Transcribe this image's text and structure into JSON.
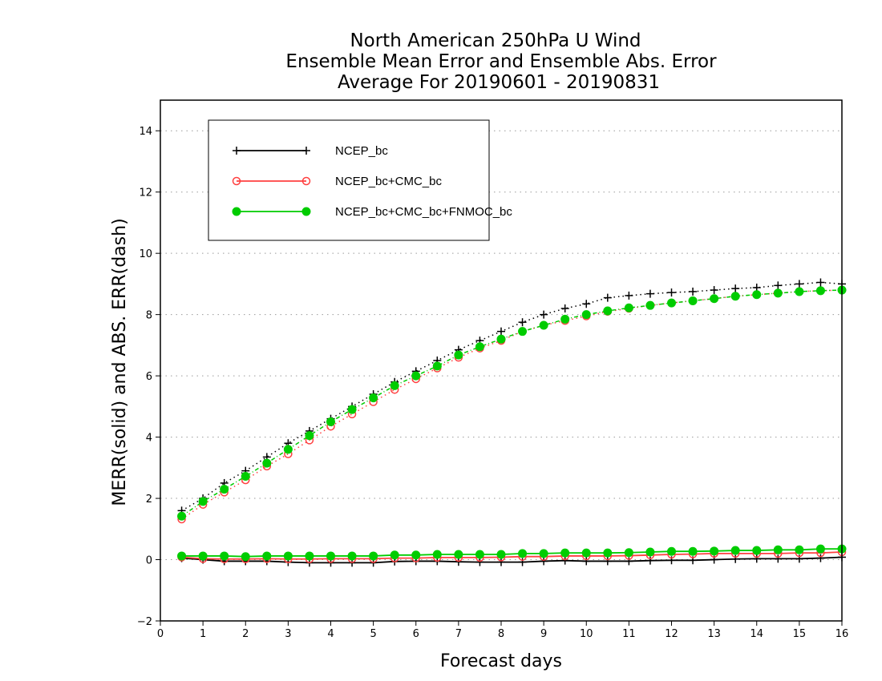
{
  "chart_data": {
    "type": "line",
    "title": [
      "North American 250hPa U Wind",
      "Ensemble Mean Error and Ensemble Abs. Error",
      "Average For 20190601 - 20190831"
    ],
    "xlabel": "Forecast days",
    "ylabel": "MERR(solid) and ABS. ERR(dash)",
    "xlim": [
      0,
      16
    ],
    "ylim": [
      -2,
      15
    ],
    "xticks": [
      "0",
      "1",
      "2",
      "3",
      "4",
      "5",
      "6",
      "7",
      "8",
      "9",
      "10",
      "11",
      "12",
      "13",
      "14",
      "15",
      "16"
    ],
    "yticks": [
      "−2",
      "0",
      "2",
      "4",
      "6",
      "8",
      "10",
      "12",
      "14"
    ],
    "grid": true,
    "legend_position": "top-left",
    "x": [
      0.5,
      1,
      1.5,
      2,
      2.5,
      3,
      3.5,
      4,
      4.5,
      5,
      5.5,
      6,
      6.5,
      7,
      7.5,
      8,
      8.5,
      9,
      9.5,
      10,
      10.5,
      11,
      11.5,
      12,
      12.5,
      13,
      13.5,
      14,
      14.5,
      15,
      15.5,
      16
    ],
    "series": [
      {
        "name": "NCEP_bc",
        "color": "#000000",
        "marker": "plus",
        "abs_error": [
          1.6,
          2.0,
          2.5,
          2.9,
          3.35,
          3.8,
          4.2,
          4.6,
          5.0,
          5.4,
          5.8,
          6.15,
          6.5,
          6.85,
          7.15,
          7.45,
          7.75,
          8.0,
          8.2,
          8.35,
          8.55,
          8.62,
          8.68,
          8.72,
          8.75,
          8.8,
          8.85,
          8.88,
          8.95,
          9.0,
          9.05,
          9.0
        ],
        "mean_error": [
          0.05,
          0.0,
          -0.05,
          -0.05,
          -0.05,
          -0.08,
          -0.1,
          -0.1,
          -0.1,
          -0.1,
          -0.06,
          -0.05,
          -0.05,
          -0.07,
          -0.08,
          -0.08,
          -0.08,
          -0.05,
          -0.03,
          -0.05,
          -0.05,
          -0.05,
          -0.03,
          -0.02,
          -0.02,
          0.0,
          0.02,
          0.03,
          0.03,
          0.03,
          0.05,
          0.08
        ]
      },
      {
        "name": "NCEP_bc+CMC_bc",
        "color": "#ff4040",
        "marker": "open-circle",
        "abs_error": [
          1.32,
          1.8,
          2.2,
          2.6,
          3.05,
          3.45,
          3.9,
          4.35,
          4.75,
          5.15,
          5.55,
          5.9,
          6.25,
          6.6,
          6.9,
          7.15,
          7.45,
          7.65,
          7.8,
          7.95,
          8.1,
          8.2,
          8.3,
          8.38,
          8.45,
          8.52,
          8.6,
          8.65,
          8.7,
          8.75,
          8.78,
          8.8
        ],
        "mean_error": [
          0.08,
          0.03,
          0.02,
          0.02,
          0.03,
          0.02,
          0.02,
          0.03,
          0.03,
          0.03,
          0.05,
          0.05,
          0.07,
          0.07,
          0.07,
          0.08,
          0.1,
          0.1,
          0.12,
          0.12,
          0.12,
          0.13,
          0.15,
          0.17,
          0.18,
          0.2,
          0.2,
          0.2,
          0.2,
          0.22,
          0.22,
          0.25
        ]
      },
      {
        "name": "NCEP_bc+CMC_bc+FNMOC_bc",
        "color": "#00cc00",
        "marker": "filled-circle",
        "abs_error": [
          1.42,
          1.9,
          2.3,
          2.72,
          3.15,
          3.6,
          4.05,
          4.5,
          4.9,
          5.28,
          5.68,
          6.0,
          6.32,
          6.68,
          6.95,
          7.2,
          7.45,
          7.65,
          7.85,
          8.0,
          8.12,
          8.22,
          8.3,
          8.38,
          8.45,
          8.52,
          8.6,
          8.65,
          8.7,
          8.75,
          8.78,
          8.8
        ],
        "mean_error": [
          0.12,
          0.12,
          0.12,
          0.1,
          0.12,
          0.12,
          0.12,
          0.12,
          0.12,
          0.12,
          0.15,
          0.15,
          0.17,
          0.17,
          0.17,
          0.17,
          0.2,
          0.2,
          0.22,
          0.22,
          0.22,
          0.23,
          0.25,
          0.27,
          0.27,
          0.28,
          0.3,
          0.3,
          0.32,
          0.32,
          0.35,
          0.35
        ]
      }
    ]
  }
}
